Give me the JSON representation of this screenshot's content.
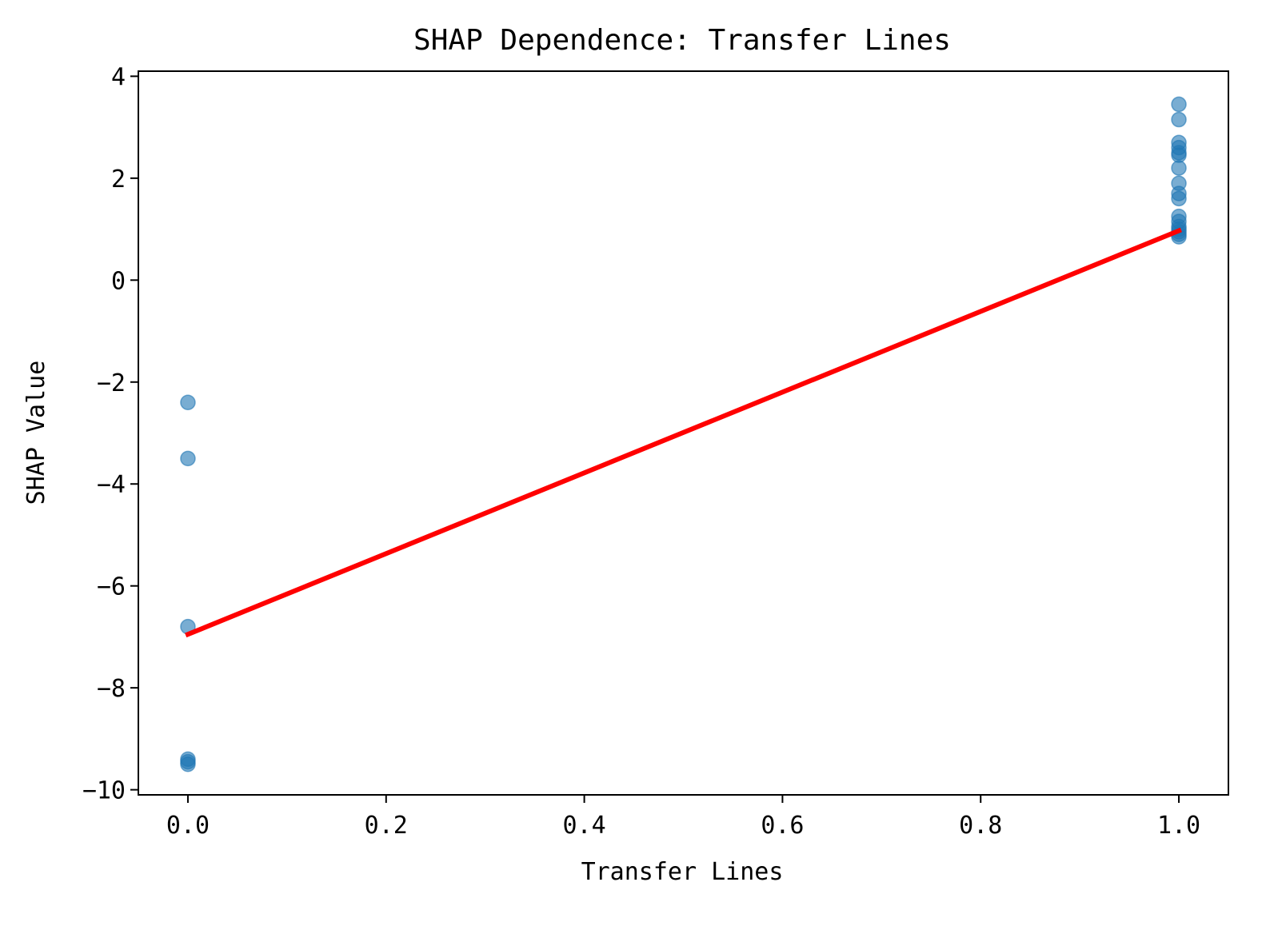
{
  "chart_data": {
    "type": "scatter",
    "title": "SHAP Dependence: Transfer Lines",
    "xlabel": "Transfer Lines",
    "ylabel": "SHAP Value",
    "xlim": [
      -0.05,
      1.05
    ],
    "ylim": [
      -10.1,
      4.1
    ],
    "xticks": [
      0.0,
      0.2,
      0.4,
      0.6,
      0.8,
      1.0
    ],
    "xtick_labels": [
      "0.0",
      "0.2",
      "0.4",
      "0.6",
      "0.8",
      "1.0"
    ],
    "yticks": [
      4,
      2,
      0,
      -2,
      -4,
      -6,
      -8,
      -10
    ],
    "ytick_labels": [
      "4",
      "2",
      "0",
      "−2",
      "−4",
      "−6",
      "−8",
      "−10"
    ],
    "grid": false,
    "points": [
      {
        "x": 0.0,
        "y": -2.4
      },
      {
        "x": 0.0,
        "y": -3.5
      },
      {
        "x": 0.0,
        "y": -6.8
      },
      {
        "x": 0.0,
        "y": -9.4
      },
      {
        "x": 0.0,
        "y": -9.45
      },
      {
        "x": 0.0,
        "y": -9.5
      },
      {
        "x": 1.0,
        "y": 3.45
      },
      {
        "x": 1.0,
        "y": 3.15
      },
      {
        "x": 1.0,
        "y": 2.7
      },
      {
        "x": 1.0,
        "y": 2.6
      },
      {
        "x": 1.0,
        "y": 2.5
      },
      {
        "x": 1.0,
        "y": 2.45
      },
      {
        "x": 1.0,
        "y": 2.2
      },
      {
        "x": 1.0,
        "y": 1.9
      },
      {
        "x": 1.0,
        "y": 1.7
      },
      {
        "x": 1.0,
        "y": 1.6
      },
      {
        "x": 1.0,
        "y": 1.25
      },
      {
        "x": 1.0,
        "y": 1.15
      },
      {
        "x": 1.0,
        "y": 1.05
      },
      {
        "x": 1.0,
        "y": 1.0
      },
      {
        "x": 1.0,
        "y": 0.95
      },
      {
        "x": 1.0,
        "y": 0.9
      },
      {
        "x": 1.0,
        "y": 0.85
      }
    ],
    "trend_line": {
      "x": [
        0.0,
        1.0
      ],
      "y": [
        -6.95,
        0.97
      ]
    },
    "colors": {
      "points": "#1f77b4",
      "trend": "#ff0000"
    }
  }
}
